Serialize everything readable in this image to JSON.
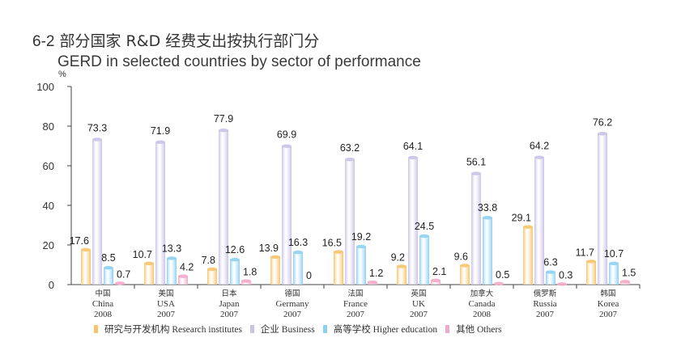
{
  "title": {
    "number": "6-2",
    "cn": "部分国家 R&D 经费支出按执行部门分",
    "en": "GERD in selected countries by sector of performance"
  },
  "colors": {
    "research": "#f6c46a",
    "business": "#c9c3e6",
    "higher_ed": "#8fd0f0",
    "others": "#f2a8c8"
  },
  "chart_data": {
    "type": "bar",
    "ylabel": "%",
    "ylim": [
      0,
      100
    ],
    "yticks": [
      0,
      20,
      40,
      60,
      80,
      100
    ],
    "grid": false,
    "legend_position": "bottom",
    "categories": [
      {
        "cn": "中国",
        "en": "China",
        "year": "2008"
      },
      {
        "cn": "美国",
        "en": "USA",
        "year": "2007"
      },
      {
        "cn": "日本",
        "en": "Japan",
        "year": "2007"
      },
      {
        "cn": "德国",
        "en": "Germany",
        "year": "2007"
      },
      {
        "cn": "法国",
        "en": "France",
        "year": "2007"
      },
      {
        "cn": "英国",
        "en": "UK",
        "year": "2007"
      },
      {
        "cn": "加拿大",
        "en": "Canada",
        "year": "2008"
      },
      {
        "cn": "俄罗斯",
        "en": "Russia",
        "year": "2007"
      },
      {
        "cn": "韩国",
        "en": "Korea",
        "year": "2007"
      }
    ],
    "series": [
      {
        "key": "research",
        "name": "研究与开发机构 Research institutes",
        "name_cn": "研究与开发机构",
        "name_en": "Research institutes",
        "values": [
          17.6,
          10.7,
          7.8,
          13.9,
          16.5,
          9.2,
          9.6,
          29.1,
          11.7
        ]
      },
      {
        "key": "business",
        "name": "企业 Business",
        "name_cn": "企业",
        "name_en": "Business",
        "values": [
          73.3,
          71.9,
          77.9,
          69.9,
          63.2,
          64.1,
          56.1,
          64.2,
          76.2
        ]
      },
      {
        "key": "higher_ed",
        "name": "高等学校 Higher education",
        "name_cn": "高等学校",
        "name_en": "Higher education",
        "values": [
          8.5,
          13.3,
          12.6,
          16.3,
          19.2,
          24.5,
          33.8,
          6.3,
          10.7
        ]
      },
      {
        "key": "others",
        "name": "其他 Others",
        "name_cn": "其他",
        "name_en": "Others",
        "values": [
          0.7,
          4.2,
          1.8,
          0,
          1.2,
          2.1,
          0.5,
          0.3,
          1.5
        ]
      }
    ]
  }
}
